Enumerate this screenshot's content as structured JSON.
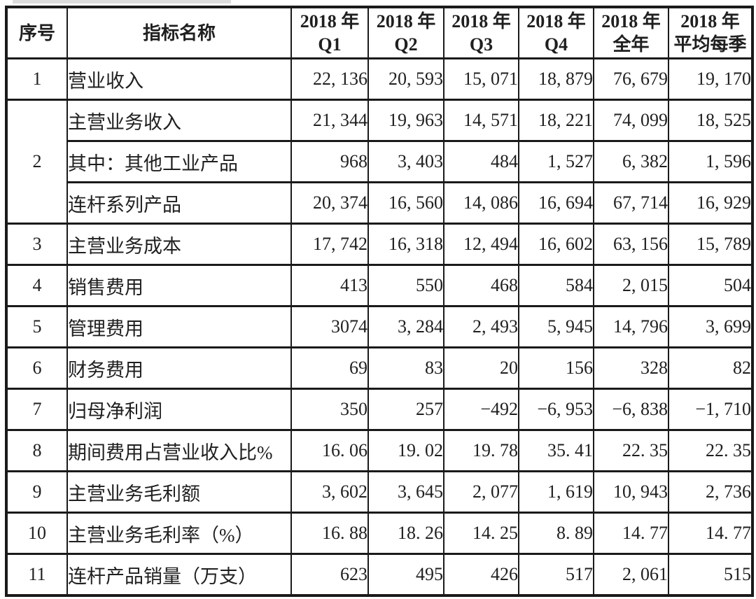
{
  "colors": {
    "border": "#1a1a1a",
    "text": "#1f1f1f",
    "background": "#ffffff",
    "artifact_gray": "#dcdcdc"
  },
  "table": {
    "headers": {
      "index_label": "序号",
      "indicator_label": "指标名称",
      "periods": [
        {
          "line1": "2018 年",
          "line2": "Q1"
        },
        {
          "line1": "2018 年",
          "line2": "Q2"
        },
        {
          "line1": "2018 年",
          "line2": "Q3"
        },
        {
          "line1": "2018 年",
          "line2": "Q4"
        },
        {
          "line1": "2018 年",
          "line2": "全年"
        },
        {
          "line1": "2018 年",
          "line2": "平均每季"
        }
      ]
    },
    "rows": [
      {
        "no": "1",
        "rowspan": 1,
        "label": "营业收入",
        "indent": false,
        "values": [
          "22, 136",
          "20, 593",
          "15, 071",
          "18, 879",
          "76, 679",
          "19, 170"
        ]
      },
      {
        "no": "2",
        "rowspan": 3,
        "label": "主营业务收入",
        "indent": false,
        "values": [
          "21, 344",
          "19, 963",
          "14, 571",
          "18, 221",
          "74, 099",
          "18, 525"
        ]
      },
      {
        "no": null,
        "rowspan": 1,
        "label": "其中：其他工业产品",
        "indent": false,
        "values": [
          "968",
          "3, 403",
          "484",
          "1, 527",
          "6, 382",
          "1, 596"
        ]
      },
      {
        "no": null,
        "rowspan": 1,
        "label": "连杆系列产品",
        "indent": true,
        "values": [
          "20, 374",
          "16, 560",
          "14, 086",
          "16, 694",
          "67, 714",
          "16, 929"
        ]
      },
      {
        "no": "3",
        "rowspan": 1,
        "label": "主营业务成本",
        "indent": false,
        "values": [
          "17, 742",
          "16, 318",
          "12, 494",
          "16, 602",
          "63, 156",
          "15, 789"
        ]
      },
      {
        "no": "4",
        "rowspan": 1,
        "label": "销售费用",
        "indent": false,
        "values": [
          "413",
          "550",
          "468",
          "584",
          "2, 015",
          "504"
        ]
      },
      {
        "no": "5",
        "rowspan": 1,
        "label": "管理费用",
        "indent": false,
        "values": [
          "3074",
          "3, 284",
          "2, 493",
          "5, 945",
          "14, 796",
          "3, 699"
        ]
      },
      {
        "no": "6",
        "rowspan": 1,
        "label": "财务费用",
        "indent": false,
        "values": [
          "69",
          "83",
          "20",
          "156",
          "328",
          "82"
        ]
      },
      {
        "no": "7",
        "rowspan": 1,
        "label": "归母净利润",
        "indent": false,
        "values": [
          "350",
          "257",
          "−492",
          "−6, 953",
          "−6, 838",
          "−1, 710"
        ]
      },
      {
        "no": "8",
        "rowspan": 1,
        "label": "期间费用占营业收入比%",
        "indent": false,
        "values": [
          "16. 06",
          "19. 02",
          "19. 78",
          "35. 41",
          "22. 35",
          "22. 35"
        ]
      },
      {
        "no": "9",
        "rowspan": 1,
        "label": "主营业务毛利额",
        "indent": false,
        "values": [
          "3, 602",
          "3, 645",
          "2, 077",
          "1, 619",
          "10, 943",
          "2, 736"
        ]
      },
      {
        "no": "10",
        "rowspan": 1,
        "label": "主营业务毛利率（%）",
        "indent": false,
        "values": [
          "16. 88",
          "18. 26",
          "14. 25",
          "8. 89",
          "14. 77",
          "14. 77"
        ]
      },
      {
        "no": "11",
        "rowspan": 1,
        "label": "连杆产品销量（万支）",
        "indent": false,
        "values": [
          "623",
          "495",
          "426",
          "517",
          "2, 061",
          "515"
        ]
      }
    ]
  }
}
